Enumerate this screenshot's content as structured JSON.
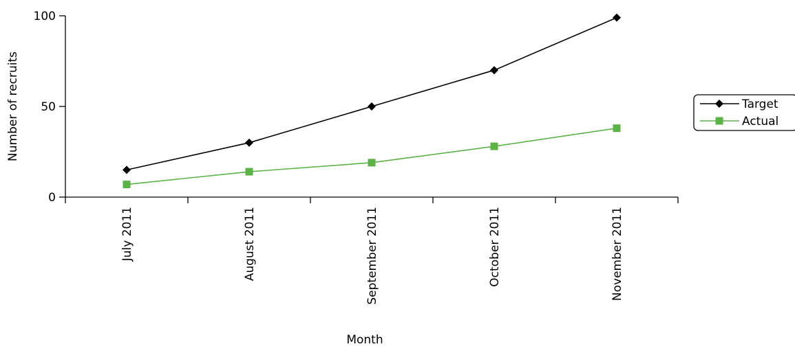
{
  "chart_data": {
    "type": "line",
    "title": "",
    "xlabel": "Month",
    "ylabel": "Number of recruits",
    "categories": [
      "July 2011",
      "August 2011",
      "September 2011",
      "October 2011",
      "November 2011"
    ],
    "ylim": [
      0,
      100
    ],
    "yticks": [
      0,
      50,
      100
    ],
    "grid": false,
    "legend_position": "right",
    "series": [
      {
        "name": "Target",
        "values": [
          15,
          30,
          50,
          70,
          99
        ],
        "color": "#000000",
        "marker": "diamond"
      },
      {
        "name": "Actual",
        "values": [
          7,
          14,
          19,
          28,
          38
        ],
        "color": "#5BB346",
        "marker": "square"
      }
    ]
  }
}
